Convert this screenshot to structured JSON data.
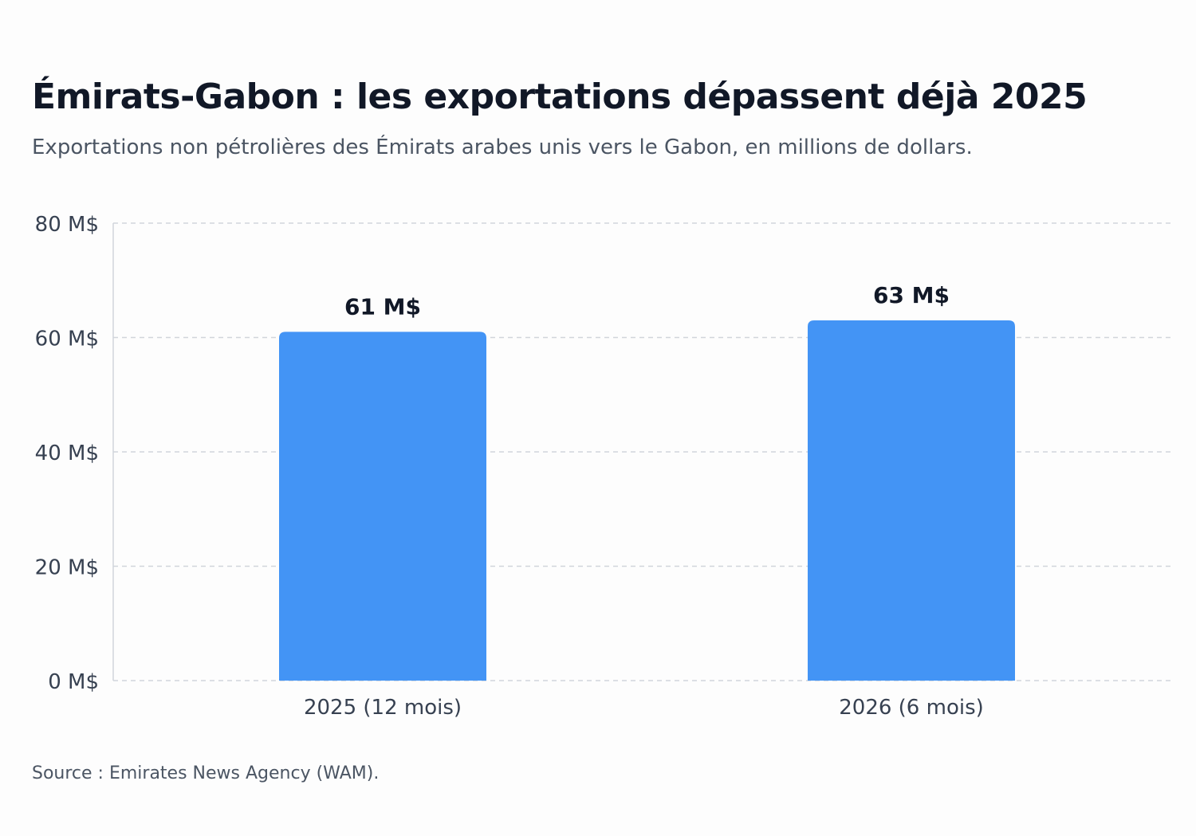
{
  "header": {
    "title": "Émirats-Gabon : les exportations dépassent déjà 2025",
    "subtitle": "Exportations non pétrolières des Émirats arabes unis vers le Gabon, en millions de dollars."
  },
  "footer": {
    "source": "Source : Emirates News Agency (WAM)."
  },
  "colors": {
    "bar": "#4394f5",
    "grid": "#d1d5db",
    "axis": "#d1d5db",
    "tick_text": "#374151",
    "label_text": "#111827"
  },
  "chart_data": {
    "type": "bar",
    "categories": [
      "2025 (12 mois)",
      "2026 (6 mois)"
    ],
    "values": [
      61,
      63
    ],
    "data_labels": [
      "61 M$",
      "63 M$"
    ],
    "yticks": [
      0,
      20,
      40,
      60,
      80
    ],
    "ytick_labels": [
      "0 M$",
      "20 M$",
      "40 M$",
      "60 M$",
      "80 M$"
    ],
    "ylim": [
      0,
      80
    ],
    "grid": true,
    "grid_style": "dashed",
    "legend": "none"
  }
}
